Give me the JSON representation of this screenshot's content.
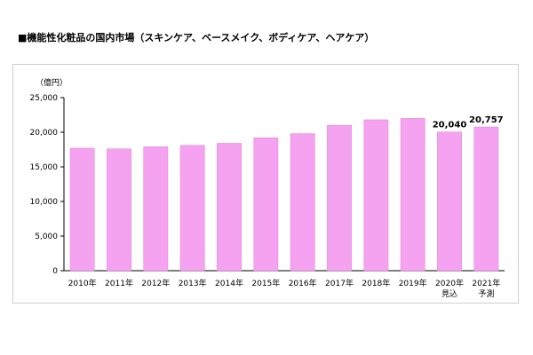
{
  "chart_data": {
    "type": "bar",
    "title": "■機能性化粧品の国内市場（スキンケア、ベースメイク、ボディケア、ヘアケア）",
    "ylabel": "（億円）",
    "xlabel": "",
    "ylim": [
      0,
      25000
    ],
    "yticks": [
      "0",
      "5,000",
      "10,000",
      "15,000",
      "20,000",
      "25,000"
    ],
    "ytick_values": [
      0,
      5000,
      10000,
      15000,
      20000,
      25000
    ],
    "grid": false,
    "categories": [
      "2010年",
      "2011年",
      "2012年",
      "2013年",
      "2014年",
      "2015年",
      "2016年",
      "2017年",
      "2018年",
      "2019年",
      "2020年",
      "2021年"
    ],
    "category_sublabels": [
      "",
      "",
      "",
      "",
      "",
      "",
      "",
      "",
      "",
      "",
      "見込",
      "予測"
    ],
    "values": [
      17700,
      17600,
      17900,
      18100,
      18400,
      19200,
      19800,
      21000,
      21800,
      22000,
      20040,
      20757
    ],
    "data_labels": [
      "",
      "",
      "",
      "",
      "",
      "",
      "",
      "",
      "",
      "",
      "20,040",
      "20,757"
    ],
    "bar_color": "#f5a3f0",
    "bar_edge_color": "#dd7fd8"
  }
}
